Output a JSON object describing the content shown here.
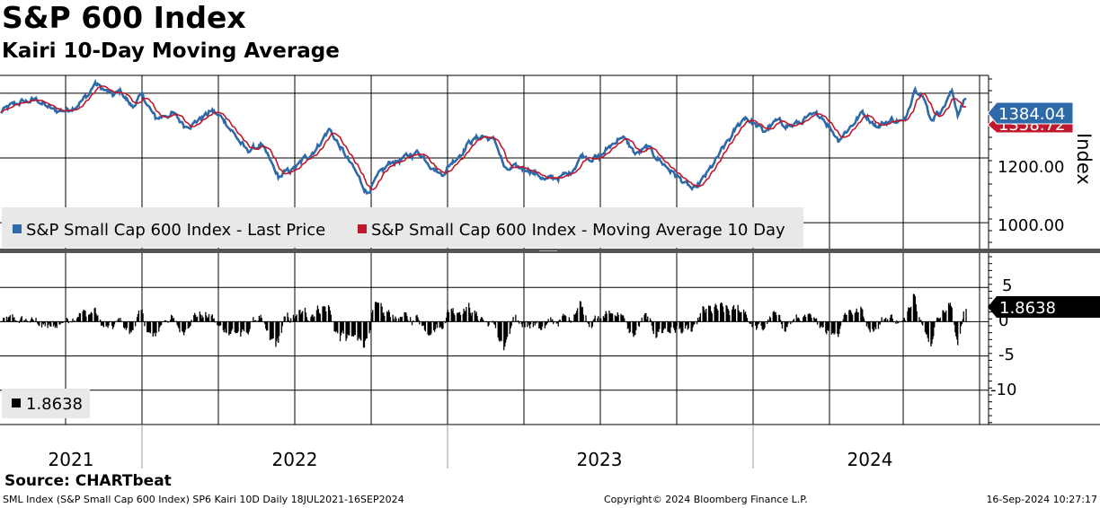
{
  "header": {
    "title": "S&P 600 Index",
    "subtitle": "Kairi 10-Day Moving Average"
  },
  "colors": {
    "price": "#2f6aa8",
    "ma": "#c0182c",
    "kairi": "#000000",
    "grid": "#000000",
    "legend_bg": "#e8e8e8"
  },
  "chart_data": [
    {
      "type": "line",
      "panel": "upper",
      "ylabel": "Index",
      "ylim": [
        920,
        1455
      ],
      "yticks": [
        1000,
        1200
      ],
      "ytick_labels": [
        "1000.00",
        "1200.00"
      ],
      "x_range": [
        "2021-07-18",
        "2024-09-16"
      ],
      "series": [
        {
          "name": "S&P Small Cap 600 Index - Last Price",
          "legend": "S&P Small Cap 600 Index - Last Price",
          "last_label": "1384.04",
          "points": [
            [
              "2021-07-18",
              1340
            ],
            [
              "2021-08-10",
              1370
            ],
            [
              "2021-09-01",
              1380
            ],
            [
              "2021-09-20",
              1345
            ],
            [
              "2021-10-08",
              1350
            ],
            [
              "2021-11-01",
              1395
            ],
            [
              "2021-11-08",
              1430
            ],
            [
              "2021-11-30",
              1390
            ],
            [
              "2021-12-10",
              1405
            ],
            [
              "2021-12-22",
              1360
            ],
            [
              "2022-01-05",
              1390
            ],
            [
              "2022-01-20",
              1320
            ],
            [
              "2022-02-08",
              1340
            ],
            [
              "2022-02-24",
              1300
            ],
            [
              "2022-03-10",
              1315
            ],
            [
              "2022-03-29",
              1345
            ],
            [
              "2022-04-15",
              1310
            ],
            [
              "2022-05-09",
              1220
            ],
            [
              "2022-05-26",
              1240
            ],
            [
              "2022-06-16",
              1140
            ],
            [
              "2022-07-08",
              1170
            ],
            [
              "2022-08-01",
              1235
            ],
            [
              "2022-08-16",
              1290
            ],
            [
              "2022-09-06",
              1200
            ],
            [
              "2022-09-30",
              1095
            ],
            [
              "2022-10-28",
              1185
            ],
            [
              "2022-11-15",
              1200
            ],
            [
              "2022-12-01",
              1220
            ],
            [
              "2022-12-28",
              1150
            ],
            [
              "2023-01-31",
              1250
            ],
            [
              "2023-02-15",
              1270
            ],
            [
              "2023-03-03",
              1250
            ],
            [
              "2023-03-15",
              1160
            ],
            [
              "2023-04-10",
              1170
            ],
            [
              "2023-05-04",
              1130
            ],
            [
              "2023-05-30",
              1150
            ],
            [
              "2023-06-14",
              1210
            ],
            [
              "2023-07-05",
              1200
            ],
            [
              "2023-07-31",
              1270
            ],
            [
              "2023-08-18",
              1210
            ],
            [
              "2023-09-01",
              1230
            ],
            [
              "2023-09-29",
              1160
            ],
            [
              "2023-10-27",
              1095
            ],
            [
              "2023-11-14",
              1160
            ],
            [
              "2023-12-01",
              1230
            ],
            [
              "2023-12-27",
              1330
            ],
            [
              "2024-01-17",
              1280
            ],
            [
              "2024-02-01",
              1310
            ],
            [
              "2024-02-22",
              1300
            ],
            [
              "2024-03-08",
              1320
            ],
            [
              "2024-03-28",
              1330
            ],
            [
              "2024-04-16",
              1260
            ],
            [
              "2024-05-01",
              1300
            ],
            [
              "2024-05-15",
              1340
            ],
            [
              "2024-06-03",
              1300
            ],
            [
              "2024-06-20",
              1320
            ],
            [
              "2024-07-05",
              1310
            ],
            [
              "2024-07-16",
              1420
            ],
            [
              "2024-07-24",
              1410
            ],
            [
              "2024-08-05",
              1320
            ],
            [
              "2024-08-20",
              1360
            ],
            [
              "2024-08-30",
              1405
            ],
            [
              "2024-09-06",
              1340
            ],
            [
              "2024-09-16",
              1384
            ]
          ]
        },
        {
          "name": "S&P Small Cap 600 Index - Moving Average 10 Day",
          "legend": "S&P Small Cap 600 Index - Moving Average 10 Day",
          "last_label": "1358.72"
        }
      ]
    },
    {
      "type": "bar",
      "panel": "lower",
      "name": "Kairi 10D",
      "ylim": [
        -15,
        10
      ],
      "yticks": [
        5,
        0,
        -5,
        -10
      ],
      "ytick_labels": [
        "5",
        "0",
        "-5",
        "-10"
      ],
      "legend": "1.8638",
      "last_label": "1.8638",
      "last_value": 1.8638
    }
  ],
  "xaxis": {
    "years": [
      "2021",
      "2022",
      "2023",
      "2024"
    ]
  },
  "footer": {
    "source": "Source: CHARTbeat",
    "left": "SML Index (S&P Small Cap 600 Index) SP6 Kairi 10D  Daily 18JUL2021-16SEP2024",
    "center": "Copyright© 2024 Bloomberg Finance L.P.",
    "right": "16-Sep-2024 10:27:17"
  }
}
